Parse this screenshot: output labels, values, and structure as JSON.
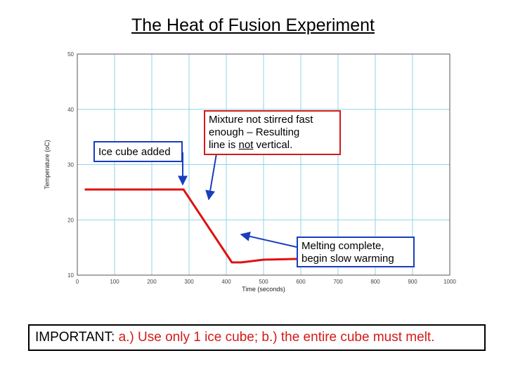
{
  "title": "The Heat of Fusion Experiment",
  "callouts": {
    "ice": "Ice cube added",
    "stir_line1": "Mixture not stirred fast",
    "stir_line2": "enough – Resulting",
    "stir_line3_pre": "line is ",
    "stir_line3_not": "not",
    "stir_line3_post": " vertical.",
    "melt_line1": "Melting complete,",
    "melt_line2": "begin slow warming"
  },
  "important": {
    "label": "IMPORTANT:",
    "text": " a.) Use only 1 ice cube; b.) the entire cube must melt."
  },
  "colors": {
    "grid": "#8fd3e8",
    "data_line": "#e01010",
    "blue_box": "#1a3dbf",
    "red_box": "#d41a1a"
  },
  "chart_data": {
    "type": "line",
    "xlabel": "Time (seconds)",
    "ylabel": "Temperature (oC)",
    "xlim": [
      0,
      1000
    ],
    "ylim": [
      10,
      50
    ],
    "xticks": [
      0,
      100,
      200,
      300,
      400,
      500,
      600,
      700,
      800,
      900,
      1000
    ],
    "yticks": [
      10,
      20,
      30,
      40,
      50
    ],
    "grid": true,
    "series": [
      {
        "x": [
          20,
          285,
          415,
          440,
          500,
          700,
          730
        ],
        "y": [
          25.5,
          25.5,
          12.3,
          12.3,
          12.8,
          13.1,
          13.2
        ]
      }
    ]
  }
}
